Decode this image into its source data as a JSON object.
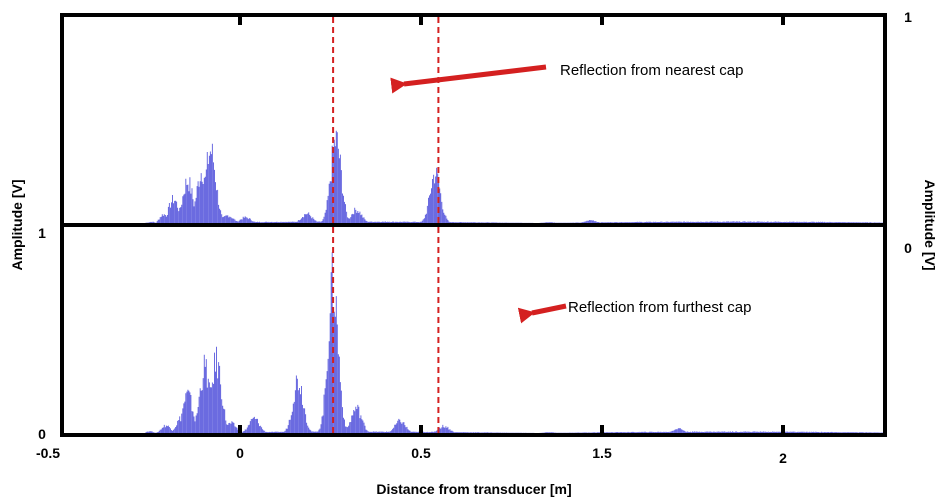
{
  "chart_data": {
    "type": "line",
    "xlabel": "Distance from transducer [m]",
    "ylabel_left": "Amplitude [V]",
    "ylabel_right": "Amplitude [V]",
    "xlim": [
      -0.5,
      2.3
    ],
    "x_ticks": [
      "-0.5",
      "0",
      "0.5",
      "1.5",
      "2"
    ],
    "series_color": "#3a3ad6",
    "marker_color": "#d42020",
    "panels": [
      {
        "position": "top",
        "ylim": [
          0,
          1
        ],
        "y_ticks_right": [
          "1",
          "0"
        ],
        "annotation": "Reflection from nearest cap",
        "markers_x": [
          0.42,
          0.78
        ],
        "peaks": [
          {
            "x": -0.17,
            "amp": 0.95
          },
          {
            "x": -0.13,
            "amp": 1.0
          },
          {
            "x": -0.08,
            "amp": 0.98
          },
          {
            "x": -0.03,
            "amp": 0.85
          },
          {
            "x": 0.0,
            "amp": 1.0
          },
          {
            "x": 0.06,
            "amp": 0.08
          },
          {
            "x": 0.12,
            "amp": 0.05
          },
          {
            "x": 0.33,
            "amp": 0.06
          },
          {
            "x": 0.43,
            "amp": 0.5
          },
          {
            "x": 0.5,
            "amp": 0.08
          },
          {
            "x": 0.77,
            "amp": 0.4
          },
          {
            "x": 1.15,
            "amp": 0.06
          },
          {
            "x": 1.15,
            "amp": 0.06
          },
          {
            "x": 1.3,
            "amp": 0.04
          }
        ]
      },
      {
        "position": "bottom",
        "ylim": [
          0,
          1
        ],
        "y_ticks_left": [
          "1",
          "0"
        ],
        "annotation": "Reflection from furthest cap",
        "markers_x": [
          0.42,
          0.78
        ],
        "peaks": [
          {
            "x": -0.19,
            "amp": 0.35
          },
          {
            "x": -0.16,
            "amp": 0.6
          },
          {
            "x": -0.1,
            "amp": 0.45
          },
          {
            "x": -0.08,
            "amp": 0.9
          },
          {
            "x": -0.02,
            "amp": 1.0
          },
          {
            "x": 0.02,
            "amp": 0.9
          },
          {
            "x": 0.07,
            "amp": 0.1
          },
          {
            "x": 0.15,
            "amp": 0.12
          },
          {
            "x": 0.3,
            "amp": 0.35
          },
          {
            "x": 0.42,
            "amp": 0.9
          },
          {
            "x": 0.5,
            "amp": 0.15
          },
          {
            "x": 0.65,
            "amp": 0.08
          },
          {
            "x": 0.8,
            "amp": 0.06
          },
          {
            "x": 1.15,
            "amp": 0.06
          },
          {
            "x": 1.15,
            "amp": 0.06
          },
          {
            "x": 1.6,
            "amp": 0.03
          }
        ]
      }
    ]
  }
}
